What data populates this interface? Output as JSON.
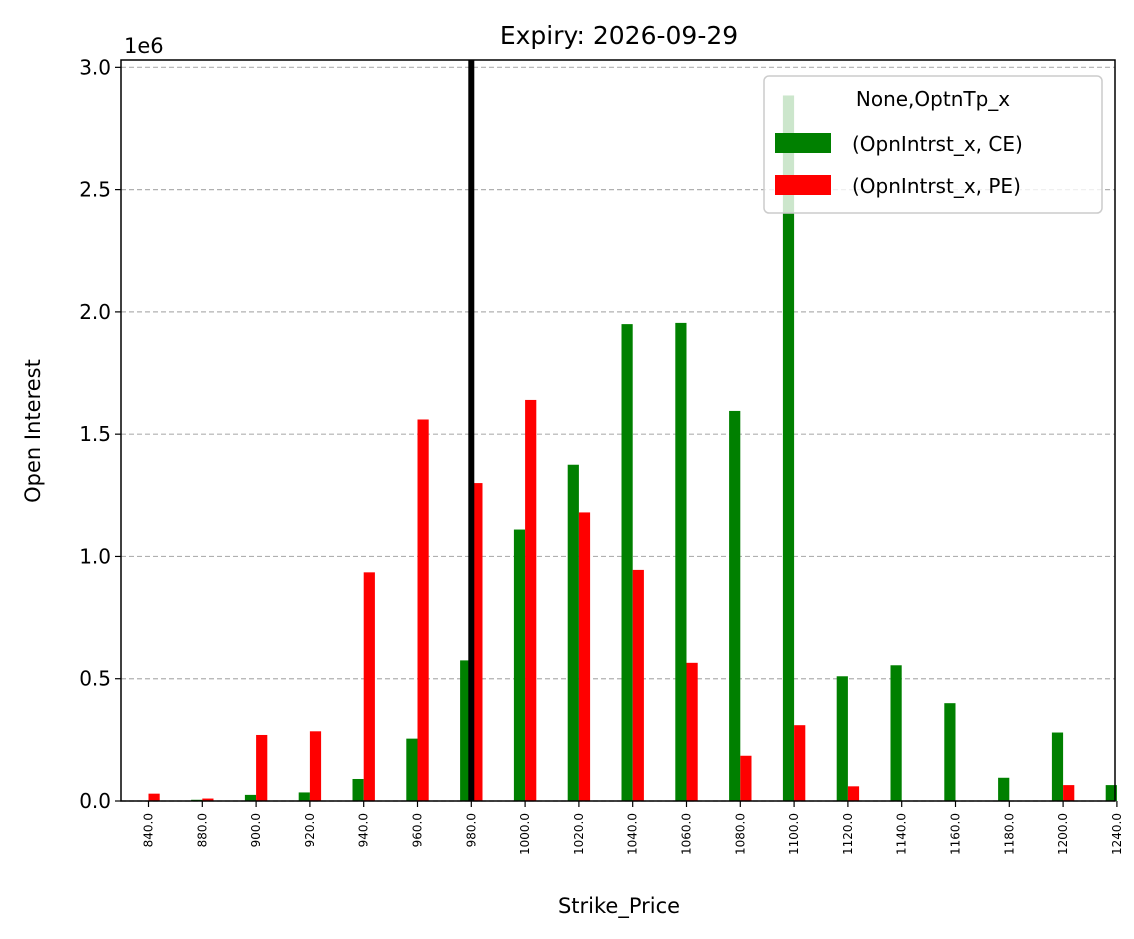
{
  "chart_data": {
    "type": "bar",
    "title": "Expiry: 2026-09-29",
    "xlabel": "Strike_Price",
    "ylabel": "Open Interest",
    "y_multiplier_label": "1e6",
    "ylim": [
      0,
      3.03
    ],
    "y_ticks": [
      0.0,
      0.5,
      1.0,
      1.5,
      2.0,
      2.5,
      3.0
    ],
    "y_tick_labels": [
      "0.0",
      "0.5",
      "1.0",
      "1.5",
      "2.0",
      "2.5",
      "3.0"
    ],
    "grid": "y, dashed",
    "categories": [
      "840.0",
      "880.0",
      "900.0",
      "920.0",
      "940.0",
      "960.0",
      "980.0",
      "1000.0",
      "1020.0",
      "1040.0",
      "1060.0",
      "1080.0",
      "1100.0",
      "1120.0",
      "1140.0",
      "1160.0",
      "1180.0",
      "1200.0",
      "1240.0"
    ],
    "series": [
      {
        "name": "(OpnIntrst_x, CE)",
        "color": "#008000",
        "values": [
          0,
          0.005,
          0.025,
          0.035,
          0.09,
          0.255,
          0.575,
          1.11,
          1.375,
          1.95,
          1.955,
          1.595,
          2.885,
          0.51,
          0.555,
          0.4,
          0.095,
          0.28,
          0.065
        ]
      },
      {
        "name": "(OpnIntrst_x, PE)",
        "color": "#ff0000",
        "values": [
          0.03,
          0.01,
          0.27,
          0.285,
          0.935,
          1.56,
          1.3,
          1.64,
          1.18,
          0.945,
          0.565,
          0.185,
          0.31,
          0.06,
          0,
          0,
          0,
          0.065,
          0
        ]
      }
    ],
    "marker_line": {
      "category": "980.0",
      "color": "#000000"
    },
    "legend": {
      "title": "None,OptnTp_x",
      "placement": "top-right"
    }
  }
}
